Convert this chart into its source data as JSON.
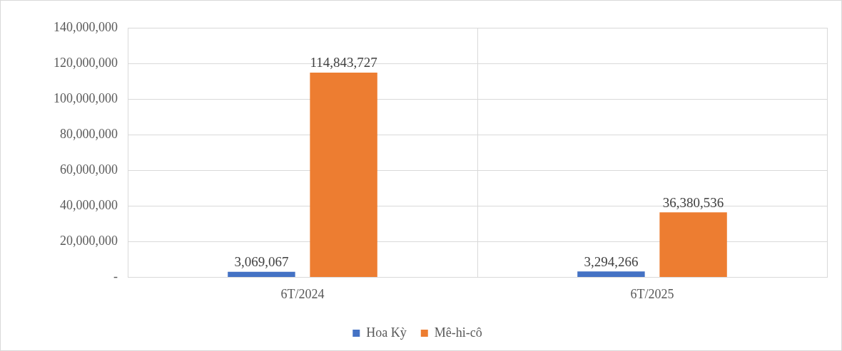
{
  "chart_data": {
    "type": "bar",
    "categories": [
      "6T/2024",
      "6T/2025"
    ],
    "series": [
      {
        "name": "Hoa Kỳ",
        "color": "#4472c4",
        "values": [
          3069067,
          3294266
        ],
        "value_labels": [
          "3,069,067",
          "3,294,266"
        ]
      },
      {
        "name": "Mê-hi-cô",
        "color": "#ed7d31",
        "values": [
          114843727,
          36380536
        ],
        "value_labels": [
          "114,843,727",
          "36,380,536"
        ]
      }
    ],
    "ylim": [
      0,
      140000000
    ],
    "yticks": [
      {
        "value": 0,
        "label": "-"
      },
      {
        "value": 20000000,
        "label": "20,000,000"
      },
      {
        "value": 40000000,
        "label": "40,000,000"
      },
      {
        "value": 60000000,
        "label": "60,000,000"
      },
      {
        "value": 80000000,
        "label": "80,000,000"
      },
      {
        "value": 100000000,
        "label": "100,000,000"
      },
      {
        "value": 120000000,
        "label": "120,000,000"
      },
      {
        "value": 140000000,
        "label": "140,000,000"
      }
    ],
    "grid": true,
    "legend": "bottom"
  }
}
